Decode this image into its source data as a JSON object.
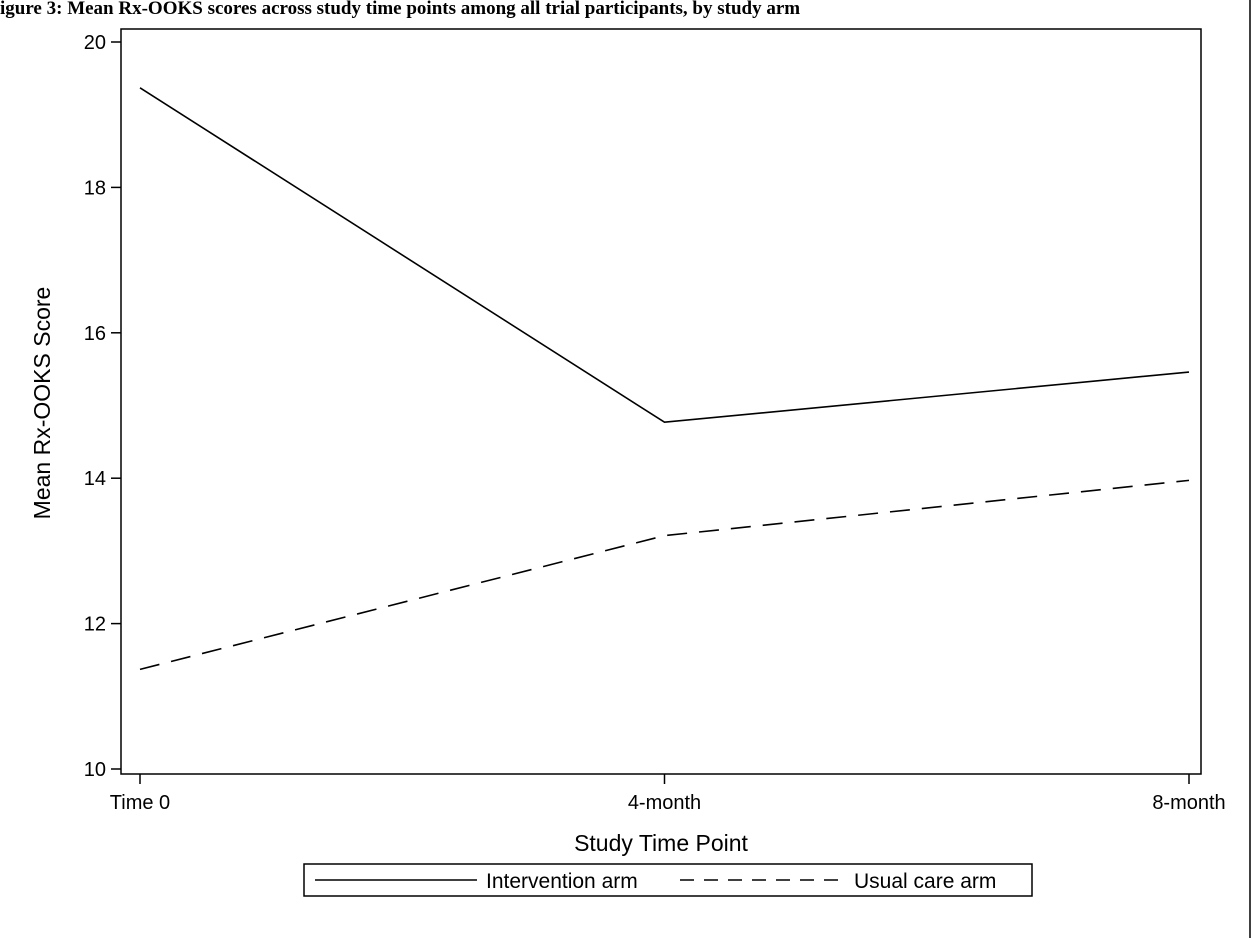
{
  "figure": {
    "title_fragment": "igure 3: Mean Rx-OOKS scores across study time points among all trial participants, by study arm"
  },
  "chart_data": {
    "type": "line",
    "categories": [
      "Time 0",
      "4-month",
      "8-month"
    ],
    "series": [
      {
        "name": "Intervention arm",
        "values": [
          19.37,
          14.77,
          15.46
        ],
        "line_style": "solid",
        "color": "#000000"
      },
      {
        "name": "Usual care arm",
        "values": [
          11.37,
          13.21,
          13.97
        ],
        "line_style": "dashed",
        "color": "#000000"
      }
    ],
    "xlabel": "Study Time Point",
    "ylabel": "Mean Rx-OOKS Score",
    "ylim": [
      10,
      20
    ],
    "yticks": [
      10,
      12,
      14,
      16,
      18,
      20
    ],
    "grid": false,
    "legend_position": "bottom-center"
  }
}
